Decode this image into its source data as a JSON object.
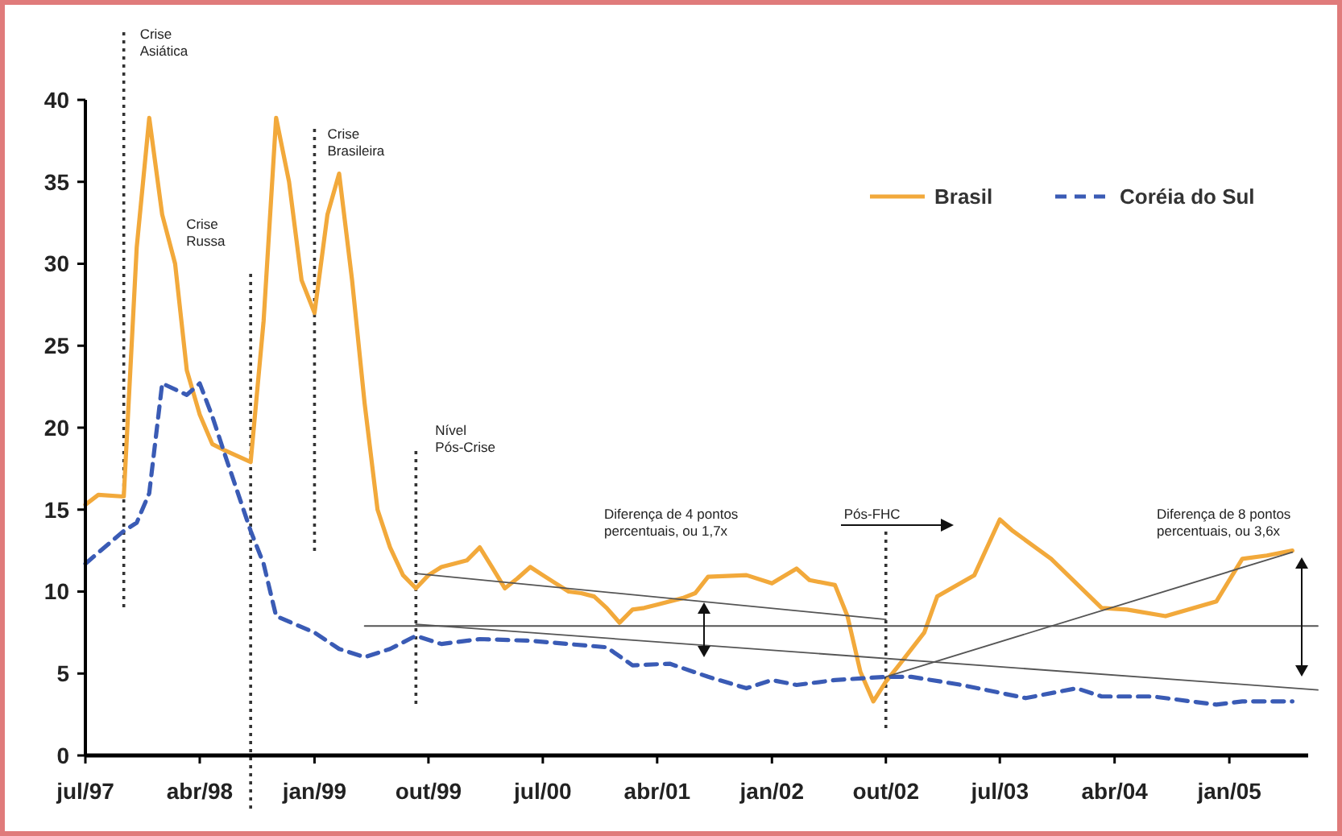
{
  "chart_data": {
    "type": "line",
    "xlim": [
      "1997-07",
      "2005-08"
    ],
    "ylim": [
      0,
      40
    ],
    "xticks": [
      {
        "value": "1997-07",
        "label": "jul/97"
      },
      {
        "value": "1998-04",
        "label": "abr/98"
      },
      {
        "value": "1999-01",
        "label": "jan/99"
      },
      {
        "value": "1999-10",
        "label": "out/99"
      },
      {
        "value": "2000-07",
        "label": "jul/00"
      },
      {
        "value": "2001-04",
        "label": "abr/01"
      },
      {
        "value": "2002-01",
        "label": "jan/02"
      },
      {
        "value": "2002-10",
        "label": "out/02"
      },
      {
        "value": "2003-07",
        "label": "jul/03"
      },
      {
        "value": "2004-04",
        "label": "abr/04"
      },
      {
        "value": "2005-01",
        "label": "jan/05"
      }
    ],
    "yticks": [
      0,
      5,
      10,
      15,
      20,
      25,
      30,
      35,
      40
    ],
    "grid": false,
    "legend": "top right",
    "marker": "none",
    "series": [
      {
        "name": "Brasil",
        "color": "#f2a93b",
        "line_style": "solid",
        "x": [
          "1997-07",
          "1997-08",
          "1997-10",
          "1997-11",
          "1997-12",
          "1998-01",
          "1998-02",
          "1998-03",
          "1998-04",
          "1998-05",
          "1998-06",
          "1998-08",
          "1998-09",
          "1998-10",
          "1998-11",
          "1998-12",
          "1999-01",
          "1999-02",
          "1999-03",
          "1999-04",
          "1999-05",
          "1999-06",
          "1999-07",
          "1999-08",
          "1999-09",
          "1999-10",
          "1999-11",
          "1999-12",
          "2000-01",
          "2000-02",
          "2000-03",
          "2000-04",
          "2000-05",
          "2000-06",
          "2000-07",
          "2000-08",
          "2000-09",
          "2000-10",
          "2000-11",
          "2000-12",
          "2001-01",
          "2001-02",
          "2001-03",
          "2001-04",
          "2001-05",
          "2001-06",
          "2001-07",
          "2001-08",
          "2001-11",
          "2002-01",
          "2002-03",
          "2002-04",
          "2002-06",
          "2002-07",
          "2002-08",
          "2002-09",
          "2002-10",
          "2002-11",
          "2003-01",
          "2003-02",
          "2003-05",
          "2003-07",
          "2003-08",
          "2003-11",
          "2004-03",
          "2004-05",
          "2004-08",
          "2004-12",
          "2005-02",
          "2005-04",
          "2005-06"
        ],
        "values": [
          15.3,
          15.9,
          15.8,
          31,
          38.9,
          33,
          30,
          23.5,
          20.8,
          19,
          18.6,
          17.9,
          26.5,
          38.9,
          35,
          29,
          27,
          33,
          35.5,
          29,
          21.5,
          15,
          12.7,
          11,
          10.2,
          11,
          11.5,
          11.7,
          11.9,
          12.7,
          11.5,
          10.2,
          10.8,
          11.5,
          11,
          10.5,
          10,
          9.9,
          9.7,
          9,
          8.1,
          8.9,
          9,
          9.2,
          9.4,
          9.6,
          9.9,
          10.9,
          11,
          10.5,
          11.4,
          10.7,
          10.4,
          8.5,
          5.1,
          3.3,
          4.5,
          5.5,
          7.5,
          9.7,
          11,
          14.4,
          13.7,
          12,
          9,
          8.9,
          8.5,
          9.4,
          12,
          12.2,
          12.5
        ]
      },
      {
        "name": "Coréia do Sul",
        "color": "#3a5bb5",
        "line_style": "dashed",
        "x": [
          "1997-07",
          "1997-10",
          "1997-11",
          "1997-12",
          "1998-01",
          "1998-03",
          "1998-04",
          "1998-05",
          "1998-06",
          "1998-08",
          "1998-09",
          "1998-10",
          "1999-01",
          "1999-03",
          "1999-05",
          "1999-07",
          "1999-09",
          "1999-11",
          "2000-02",
          "2000-06",
          "2000-12",
          "2001-02",
          "2001-05",
          "2001-08",
          "2001-11",
          "2002-01",
          "2002-03",
          "2002-06",
          "2002-10",
          "2002-12",
          "2003-04",
          "2003-09",
          "2004-01",
          "2004-03",
          "2004-07",
          "2004-12",
          "2005-02",
          "2005-06"
        ],
        "values": [
          11.7,
          13.7,
          14.2,
          16,
          22.7,
          22,
          22.7,
          20.7,
          18.3,
          13.7,
          11.7,
          8.5,
          7.5,
          6.5,
          6,
          6.5,
          7.3,
          6.8,
          7.1,
          7,
          6.6,
          5.5,
          5.6,
          4.8,
          4.1,
          4.6,
          4.3,
          4.6,
          4.8,
          4.8,
          4.3,
          3.5,
          4.1,
          3.6,
          3.6,
          3.1,
          3.3,
          3.3
        ]
      },
      {
        "color": "#555555",
        "line_style": "solid",
        "x": [
          "1999-09",
          "2002-10"
        ],
        "values": [
          11.1,
          8.3
        ]
      },
      {
        "color": "#555555",
        "line_style": "solid",
        "x": [
          "2002-10",
          "2005-06"
        ],
        "values": [
          4.8,
          12.4
        ]
      },
      {
        "color": "#555555",
        "line_style": "solid",
        "x": [
          "1999-09",
          "2005-08"
        ],
        "values": [
          8,
          4
        ]
      },
      {
        "color": "#555555",
        "line_style": "solid",
        "x": [
          "1999-05",
          "2005-08"
        ],
        "values": [
          7.9,
          7.9
        ]
      }
    ],
    "ref_lines": [
      {
        "axis": "x",
        "value": "1997-10",
        "label": "Crise\nAsiática",
        "color": "#333333",
        "line_style": "dotted"
      },
      {
        "axis": "x",
        "value": "1998-08",
        "label": "Crise\nRussa",
        "color": "#333333",
        "line_style": "dotted"
      },
      {
        "axis": "x",
        "value": "1999-01",
        "label": "Crise\nBrasileira",
        "color": "#333333",
        "line_style": "dotted"
      },
      {
        "axis": "x",
        "value": "1999-09",
        "label": "Nível\nPós-Crise",
        "color": "#333333",
        "line_style": "dotted"
      },
      {
        "axis": "x",
        "value": "2002-10",
        "label": "Pós-FHC",
        "color": "#333333",
        "line_style": "dotted"
      }
    ],
    "annotations": [
      "Diferença de 4 pontos\npercentuais, ou 1,7x",
      "Diferença de 8 pontos\npercentuais, ou 3,6x"
    ]
  }
}
